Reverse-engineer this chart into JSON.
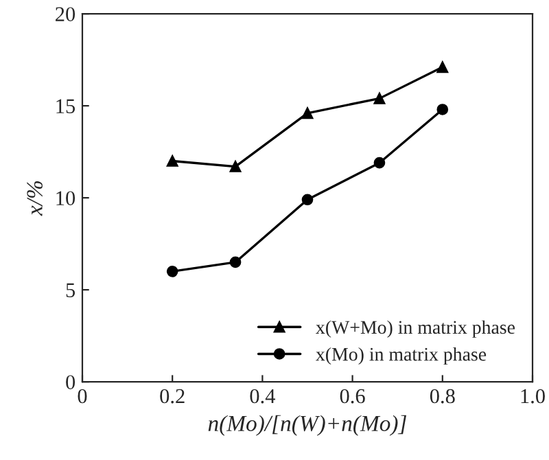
{
  "chart_data": {
    "type": "line",
    "xlabel": "n(Mo)/[n(W)+n(Mo)]",
    "ylabel": "x/%",
    "xlim": [
      0,
      1.0
    ],
    "xticks": [
      0,
      0.2,
      0.4,
      0.6,
      0.8,
      {
        "value": 1.0,
        "label": "1.0"
      }
    ],
    "ylim": [
      0,
      20
    ],
    "yticks": [
      0,
      5,
      10,
      15,
      20
    ],
    "grid": false,
    "legend": "bottom right",
    "line_style": "solid",
    "series": [
      {
        "name": "x(W+Mo) in matrix phase",
        "color": "#000000",
        "marker": "triangle",
        "x": [
          0.2,
          0.34,
          0.5,
          0.66,
          0.8
        ],
        "values": [
          12.0,
          11.7,
          14.6,
          15.4,
          17.1
        ]
      },
      {
        "name": "x(Mo) in matrix phase",
        "color": "#000000",
        "marker": "circle",
        "x": [
          0.2,
          0.34,
          0.5,
          0.66,
          0.8
        ],
        "values": [
          6.0,
          6.5,
          9.9,
          11.9,
          14.8
        ]
      }
    ]
  }
}
